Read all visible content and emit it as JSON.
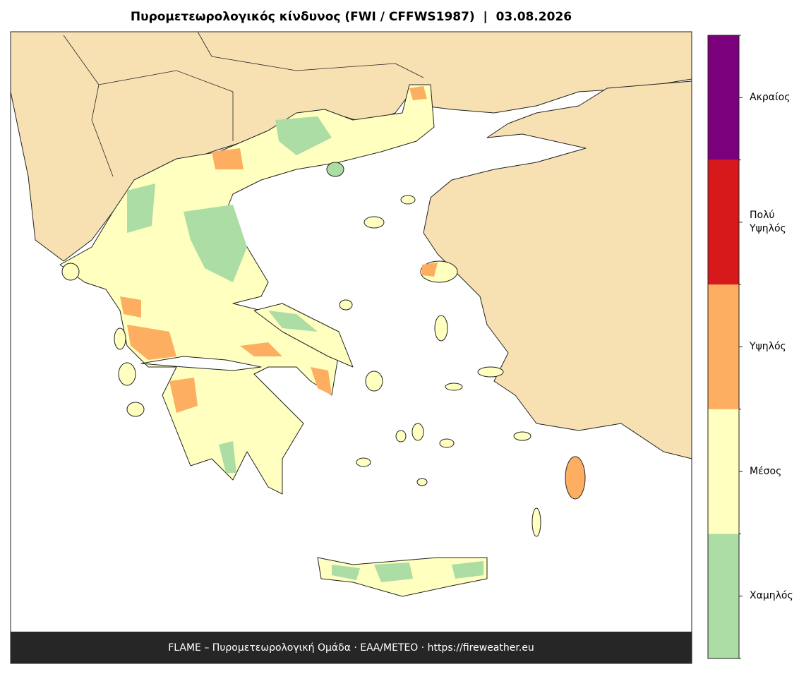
{
  "title": "Πυρομετεωρολογικός κίνδυνος (FWI / CFFWS1987)  |  03.08.2026",
  "footer": "FLAME – Πυρομετεωρολογική Ομάδα · ΕΑΑ/METEO · https://fireweather.eu",
  "legend": {
    "classes": [
      {
        "label": "Χαμηλός",
        "color": "#abdda4"
      },
      {
        "label": "Μέσος",
        "color": "#ffffbf"
      },
      {
        "label": "Υψηλός",
        "color": "#fdae61"
      },
      {
        "label": "Πολύ Υψηλός",
        "color": "#d7191c"
      },
      {
        "label": "Ακραίος",
        "color": "#7b007b"
      }
    ]
  }
}
